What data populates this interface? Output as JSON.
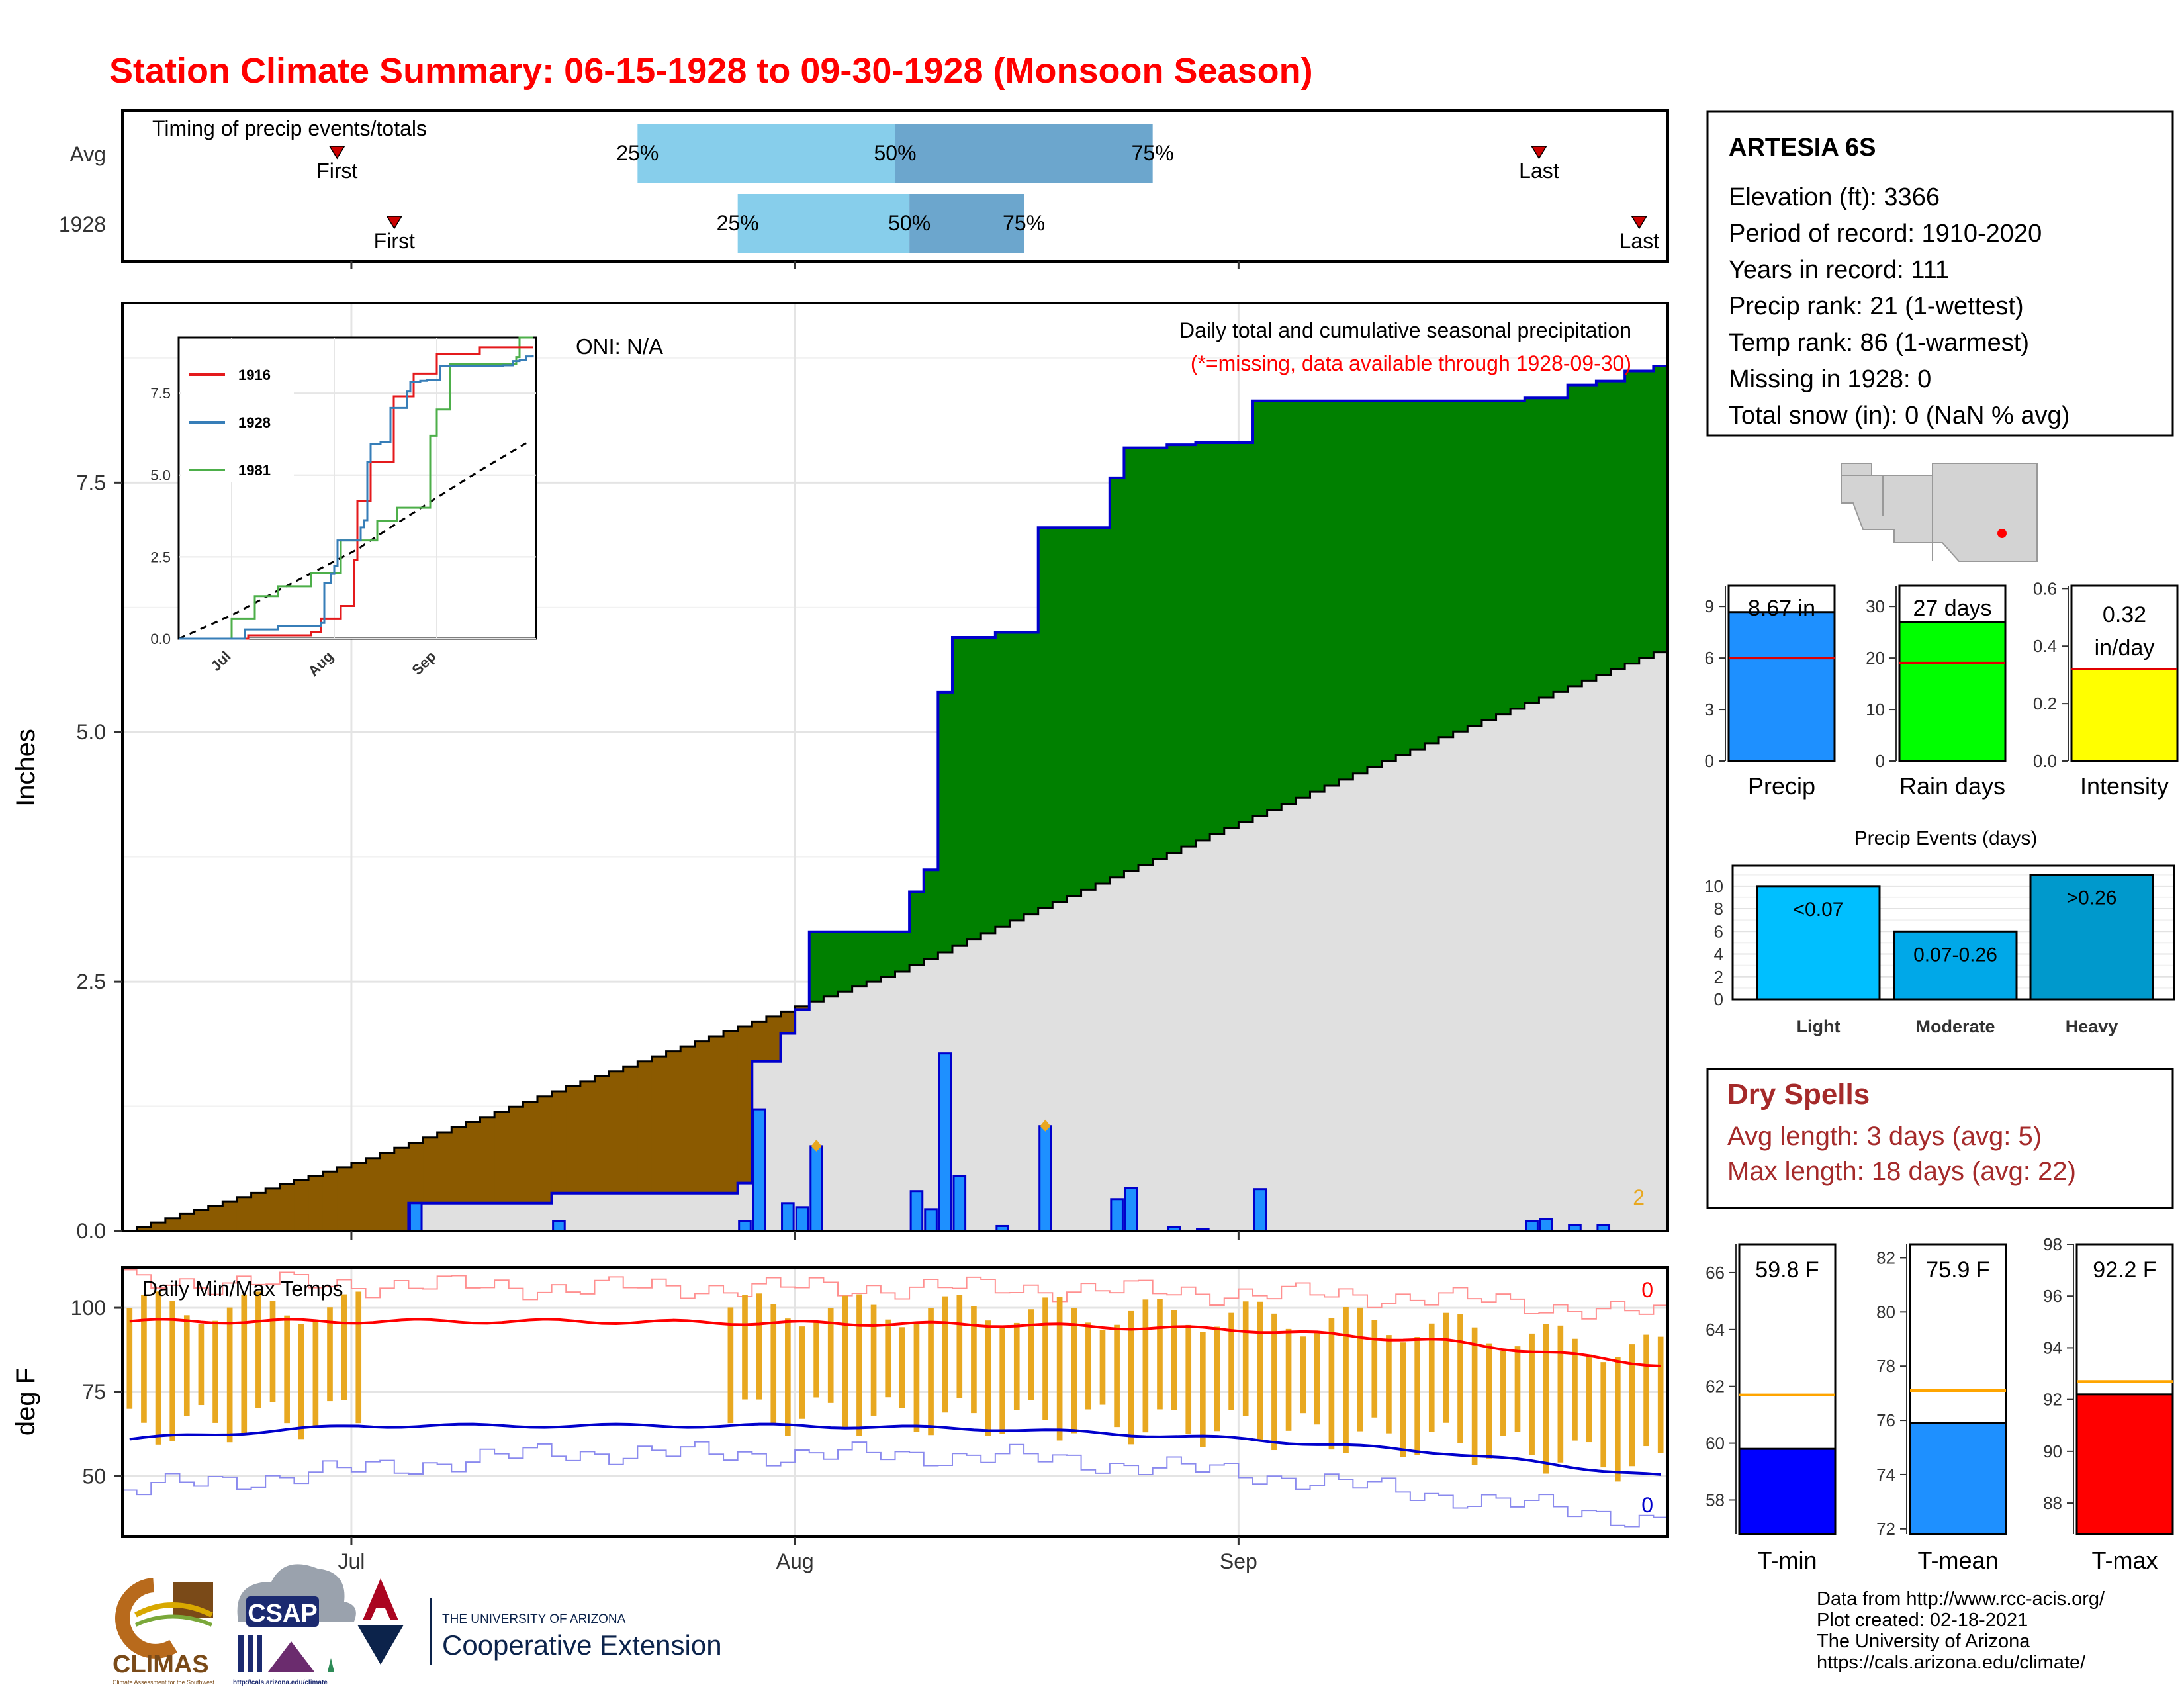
{
  "title": "Station Climate Summary: 06-15-1928 to 09-30-1928 (Monsoon Season)",
  "colors": {
    "title": "#ff0000",
    "brown": "#8b5a00",
    "green": "#008000",
    "precip_bar": "#1e90ff",
    "climo": "#e0e0e0",
    "temp_bar": "#e8a820",
    "max_line": "#ff0000",
    "min_line": "#0000cc",
    "dry": "#a52a2a"
  },
  "timing": {
    "title": "Timing of precip events/totals",
    "rows": [
      {
        "label": "Avg",
        "first": "First",
        "last": "Last",
        "first_date": "1928-06-30",
        "last_date": "1928-09-22",
        "p25": "25%",
        "p50": "50%",
        "p75": "75%",
        "p25_date": "1928-07-21",
        "p50_date": "1928-08-08",
        "p75_date": "1928-08-26"
      },
      {
        "label": "1928",
        "first": "First",
        "last": "Last",
        "first_date": "1928-07-04",
        "last_date": "1928-09-29",
        "p25": "25%",
        "p50": "50%",
        "p75": "75%",
        "p25_date": "1928-07-28",
        "p50_date": "1928-08-09",
        "p75_date": "1928-08-17"
      }
    ]
  },
  "main": {
    "ylabel": "Inches",
    "yticks": [
      "0.0",
      "2.5",
      "5.0",
      "7.5"
    ],
    "caption": "Daily total and cumulative seasonal precipitation",
    "missing_note": "(*=missing, data available through 1928-09-30)",
    "oni": "ONI: N/A",
    "corner_count": "2"
  },
  "inset": {
    "yticks": [
      "0.0",
      "2.5",
      "5.0",
      "7.5"
    ],
    "xticks": [
      "Jul",
      "Aug",
      "Sep"
    ],
    "legend": [
      {
        "name": "1916",
        "color": "#e41a1c"
      },
      {
        "name": "1928",
        "color": "#377eb8"
      },
      {
        "name": "1981",
        "color": "#4daf4a"
      }
    ]
  },
  "temps": {
    "ylabel": "deg F",
    "title": "Daily Min/Max Temps",
    "yticks": [
      "50",
      "75",
      "100"
    ],
    "count_max": "0",
    "count_min": "0"
  },
  "xaxis": {
    "ticks": [
      "Jul",
      "Aug",
      "Sep"
    ]
  },
  "station": {
    "name": "ARTESIA 6S",
    "lines": [
      "Elevation (ft): 3366",
      "Period of record: 1910-2020",
      "Years in record: 111",
      "Precip rank: 21 (1-wettest)",
      "Temp rank: 86 (1-warmest)",
      "Missing in 1928: 0",
      "Total snow (in): 0 (NaN % avg)"
    ]
  },
  "summary_bars": [
    {
      "label": "Precip",
      "value_label": "8.67 in",
      "value": 8.67,
      "avg": 6.0,
      "ymax": 10.2,
      "yticks": [
        "0",
        "3",
        "6",
        "9"
      ],
      "yvals": [
        0,
        3,
        6,
        9
      ],
      "color": "#1e90ff"
    },
    {
      "label": "Rain days",
      "value_label": "27 days",
      "value": 27,
      "avg": 19,
      "ymax": 34,
      "yticks": [
        "0",
        "10",
        "20",
        "30"
      ],
      "yvals": [
        0,
        10,
        20,
        30
      ],
      "color": "#00ff00"
    },
    {
      "label": "Intensity",
      "value_label": "0.32",
      "value_label2": "in/day",
      "value": 0.32,
      "avg": 0.32,
      "ymax": 0.61,
      "yticks": [
        "0.0",
        "0.2",
        "0.4",
        "0.6"
      ],
      "yvals": [
        0,
        0.2,
        0.4,
        0.6
      ],
      "color": "#ffff00"
    }
  ],
  "events": {
    "title": "Precip Events (days)",
    "yticks": [
      "0",
      "2",
      "4",
      "6",
      "8",
      "10"
    ],
    "categories": [
      {
        "label": "Light",
        "range": "<0.07",
        "value": 10,
        "color": "#00bfff"
      },
      {
        "label": "Moderate",
        "range": "0.07-0.26",
        "value": 6,
        "color": "#00a8e8"
      },
      {
        "label": "Heavy",
        "range": ">0.26",
        "value": 11,
        "color": "#0099cc"
      }
    ]
  },
  "dry_spells": {
    "title": "Dry Spells",
    "avg_line": "Avg length: 3 days (avg: 5)",
    "max_line": "Max length: 18 days (avg: 22)"
  },
  "temp_bars": [
    {
      "label": "T-min",
      "value_label": "59.8 F",
      "value": 59.8,
      "avg": 61.7,
      "ymin": 56.8,
      "ymax": 67.0,
      "yticks": [
        "58",
        "60",
        "62",
        "64",
        "66"
      ],
      "yvals": [
        58,
        60,
        62,
        64,
        66
      ],
      "color": "#0000ff"
    },
    {
      "label": "T-mean",
      "value_label": "75.9 F",
      "value": 75.9,
      "avg": 77.1,
      "ymin": 71.8,
      "ymax": 82.5,
      "yticks": [
        "72",
        "74",
        "76",
        "78",
        "80",
        "82"
      ],
      "yvals": [
        72,
        74,
        76,
        78,
        80,
        82
      ],
      "color": "#1e90ff"
    },
    {
      "label": "T-max",
      "value_label": "92.2 F",
      "value": 92.2,
      "avg": 92.7,
      "ymin": 86.8,
      "ymax": 98.0,
      "yticks": [
        "88",
        "90",
        "92",
        "94",
        "96",
        "98"
      ],
      "yvals": [
        88,
        90,
        92,
        94,
        96,
        98
      ],
      "color": "#ff0000"
    }
  ],
  "credits": [
    "Data from http://www.rcc-acis.org/",
    "Plot created: 02-18-2021",
    "The University of Arizona",
    "https://cals.arizona.edu/climate/"
  ],
  "logos": {
    "climas": "CLIMAS",
    "climas_sub": "Climate Assessment for the Southwest",
    "csap": "CSAP",
    "csap_url": "http://cals.arizona.edu/climate",
    "ua_small": "THE UNIVERSITY OF ARIZONA",
    "ua_big": "Cooperative Extension"
  },
  "chart_data": {
    "type": "area",
    "title": "Station Climate Summary: 06-15-1928 to 09-30-1928 (Monsoon Season)",
    "ylabel": "Inches",
    "ylim": [
      0,
      9.3
    ],
    "x_range": [
      "1928-06-15",
      "1928-09-30"
    ],
    "cumulative_1928": [
      [
        "1928-06-15",
        0.0
      ],
      [
        "1928-07-04",
        0.0
      ],
      [
        "1928-07-05",
        0.28
      ],
      [
        "1928-07-14",
        0.28
      ],
      [
        "1928-07-15",
        0.38
      ],
      [
        "1928-07-27",
        0.38
      ],
      [
        "1928-07-28",
        0.48
      ],
      [
        "1928-07-29",
        1.7
      ],
      [
        "1928-07-30",
        1.7
      ],
      [
        "1928-07-31",
        1.98
      ],
      [
        "1928-08-01",
        2.22
      ],
      [
        "1928-08-02",
        3.0
      ],
      [
        "1928-08-08",
        3.0
      ],
      [
        "1928-08-09",
        3.4
      ],
      [
        "1928-08-10",
        3.62
      ],
      [
        "1928-08-11",
        5.4
      ],
      [
        "1928-08-12",
        5.95
      ],
      [
        "1928-08-15",
        6.0
      ],
      [
        "1928-08-18",
        7.05
      ],
      [
        "1928-08-23",
        7.55
      ],
      [
        "1928-08-24",
        7.85
      ],
      [
        "1928-08-27",
        7.88
      ],
      [
        "1928-08-29",
        7.9
      ],
      [
        "1928-09-02",
        8.32
      ],
      [
        "1928-09-21",
        8.35
      ],
      [
        "1928-09-24",
        8.48
      ],
      [
        "1928-09-26",
        8.52
      ],
      [
        "1928-09-28",
        8.62
      ],
      [
        "1928-09-30",
        8.67
      ]
    ],
    "climatology_cumulative": [
      [
        "1928-06-15",
        0.0
      ],
      [
        "1928-07-01",
        0.68
      ],
      [
        "1928-07-15",
        1.4
      ],
      [
        "1928-07-29",
        2.1
      ],
      [
        "1928-08-08",
        2.6
      ],
      [
        "1928-08-15",
        3.05
      ],
      [
        "1928-09-01",
        4.1
      ],
      [
        "1928-09-15",
        4.95
      ],
      [
        "1928-09-30",
        5.8
      ]
    ],
    "daily_precip": [
      [
        "1928-07-05",
        0.28
      ],
      [
        "1928-07-15",
        0.1
      ],
      [
        "1928-07-28",
        0.1
      ],
      [
        "1928-07-29",
        1.22
      ],
      [
        "1928-07-31",
        0.28
      ],
      [
        "1928-08-01",
        0.24
      ],
      [
        "1928-08-02",
        0.85
      ],
      [
        "1928-08-09",
        0.4
      ],
      [
        "1928-08-10",
        0.22
      ],
      [
        "1928-08-11",
        1.78
      ],
      [
        "1928-08-12",
        0.55
      ],
      [
        "1928-08-15",
        0.05
      ],
      [
        "1928-08-18",
        1.05
      ],
      [
        "1928-08-23",
        0.32
      ],
      [
        "1928-08-24",
        0.43
      ],
      [
        "1928-08-27",
        0.04
      ],
      [
        "1928-08-29",
        0.02
      ],
      [
        "1928-09-02",
        0.42
      ],
      [
        "1928-09-21",
        0.1
      ],
      [
        "1928-09-22",
        0.12
      ],
      [
        "1928-09-24",
        0.06
      ],
      [
        "1928-09-26",
        0.06
      ]
    ],
    "temps": {
      "ylim": [
        32,
        112
      ],
      "avg_max": [
        [
          "1928-06-15",
          96
        ],
        [
          "1928-07-15",
          96
        ],
        [
          "1928-08-15",
          95
        ],
        [
          "1928-09-01",
          93.5
        ],
        [
          "1928-09-15",
          90
        ],
        [
          "1928-09-30",
          83
        ]
      ],
      "avg_min": [
        [
          "1928-06-15",
          61
        ],
        [
          "1928-07-01",
          65
        ],
        [
          "1928-08-01",
          65
        ],
        [
          "1928-08-15",
          64
        ],
        [
          "1928-09-01",
          61
        ],
        [
          "1928-09-15",
          57
        ],
        [
          "1928-09-30",
          50
        ]
      ],
      "record_max_approx": [
        [
          "1928-06-15",
          108
        ],
        [
          "1928-07-15",
          106
        ],
        [
          "1928-08-15",
          106
        ],
        [
          "1928-09-15",
          103
        ],
        [
          "1928-09-30",
          98
        ]
      ],
      "record_min_approx": [
        [
          "1928-06-15",
          46
        ],
        [
          "1928-07-15",
          57
        ],
        [
          "1928-08-15",
          56
        ],
        [
          "1928-09-01",
          51
        ],
        [
          "1928-09-30",
          37
        ]
      ]
    }
  }
}
